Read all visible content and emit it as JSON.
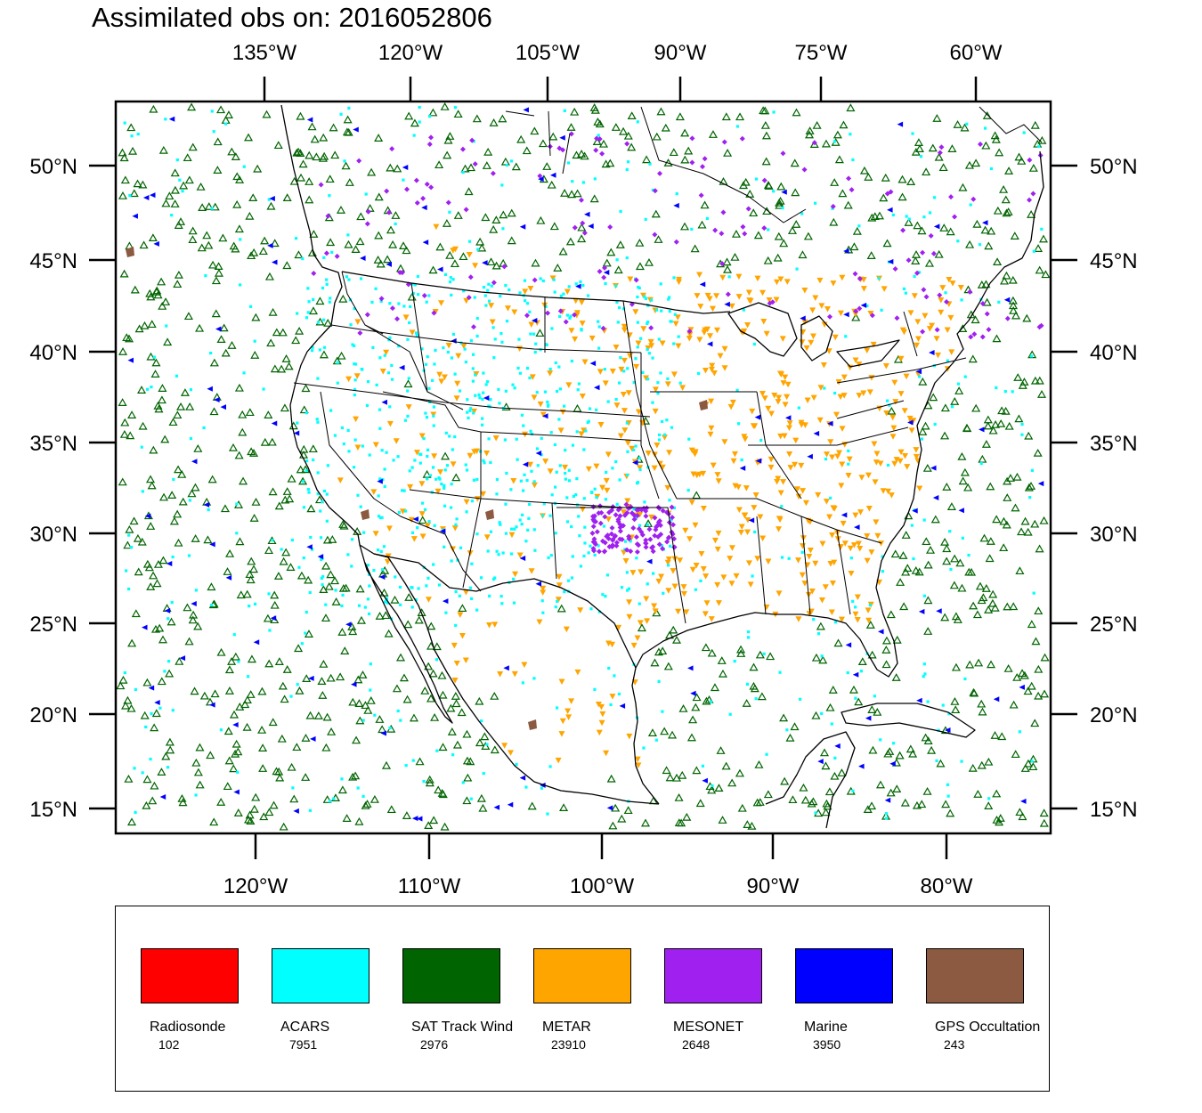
{
  "title": "Assimilated obs on: 2016052806",
  "top_axis": {
    "ticks": [
      "135°W",
      "120°W",
      "105°W",
      "90°W",
      "75°W",
      "60°W"
    ]
  },
  "bottom_axis": {
    "ticks": [
      "120°W",
      "110°W",
      "100°W",
      "90°W",
      "80°W"
    ]
  },
  "left_axis": {
    "ticks": [
      "50°N",
      "45°N",
      "40°N",
      "35°N",
      "30°N",
      "25°N",
      "20°N",
      "15°N"
    ]
  },
  "right_axis": {
    "ticks": [
      "50°N",
      "45°N",
      "40°N",
      "35°N",
      "30°N",
      "25°N",
      "20°N",
      "15°N"
    ]
  },
  "legend": {
    "items": [
      {
        "name": "Radiosonde",
        "count": "102",
        "color": "#ff0000",
        "icon": "filled-square"
      },
      {
        "name": "ACARS",
        "count": "7951",
        "color": "#00ffff",
        "icon": "small-square"
      },
      {
        "name": "SAT Track Wind",
        "count": "2976",
        "color": "#006400",
        "icon": "open-triangle-up"
      },
      {
        "name": "METAR",
        "count": "23910",
        "color": "#ffa500",
        "icon": "filled-triangle-down"
      },
      {
        "name": "MESONET",
        "count": "2648",
        "color": "#a020f0",
        "icon": "diamond"
      },
      {
        "name": "Marine",
        "count": "3950",
        "color": "#0000ff",
        "icon": "filled-triangle-left"
      },
      {
        "name": "GPS Occultation",
        "count": "243",
        "color": "#8b5a40",
        "icon": "filled-blob"
      }
    ]
  }
}
